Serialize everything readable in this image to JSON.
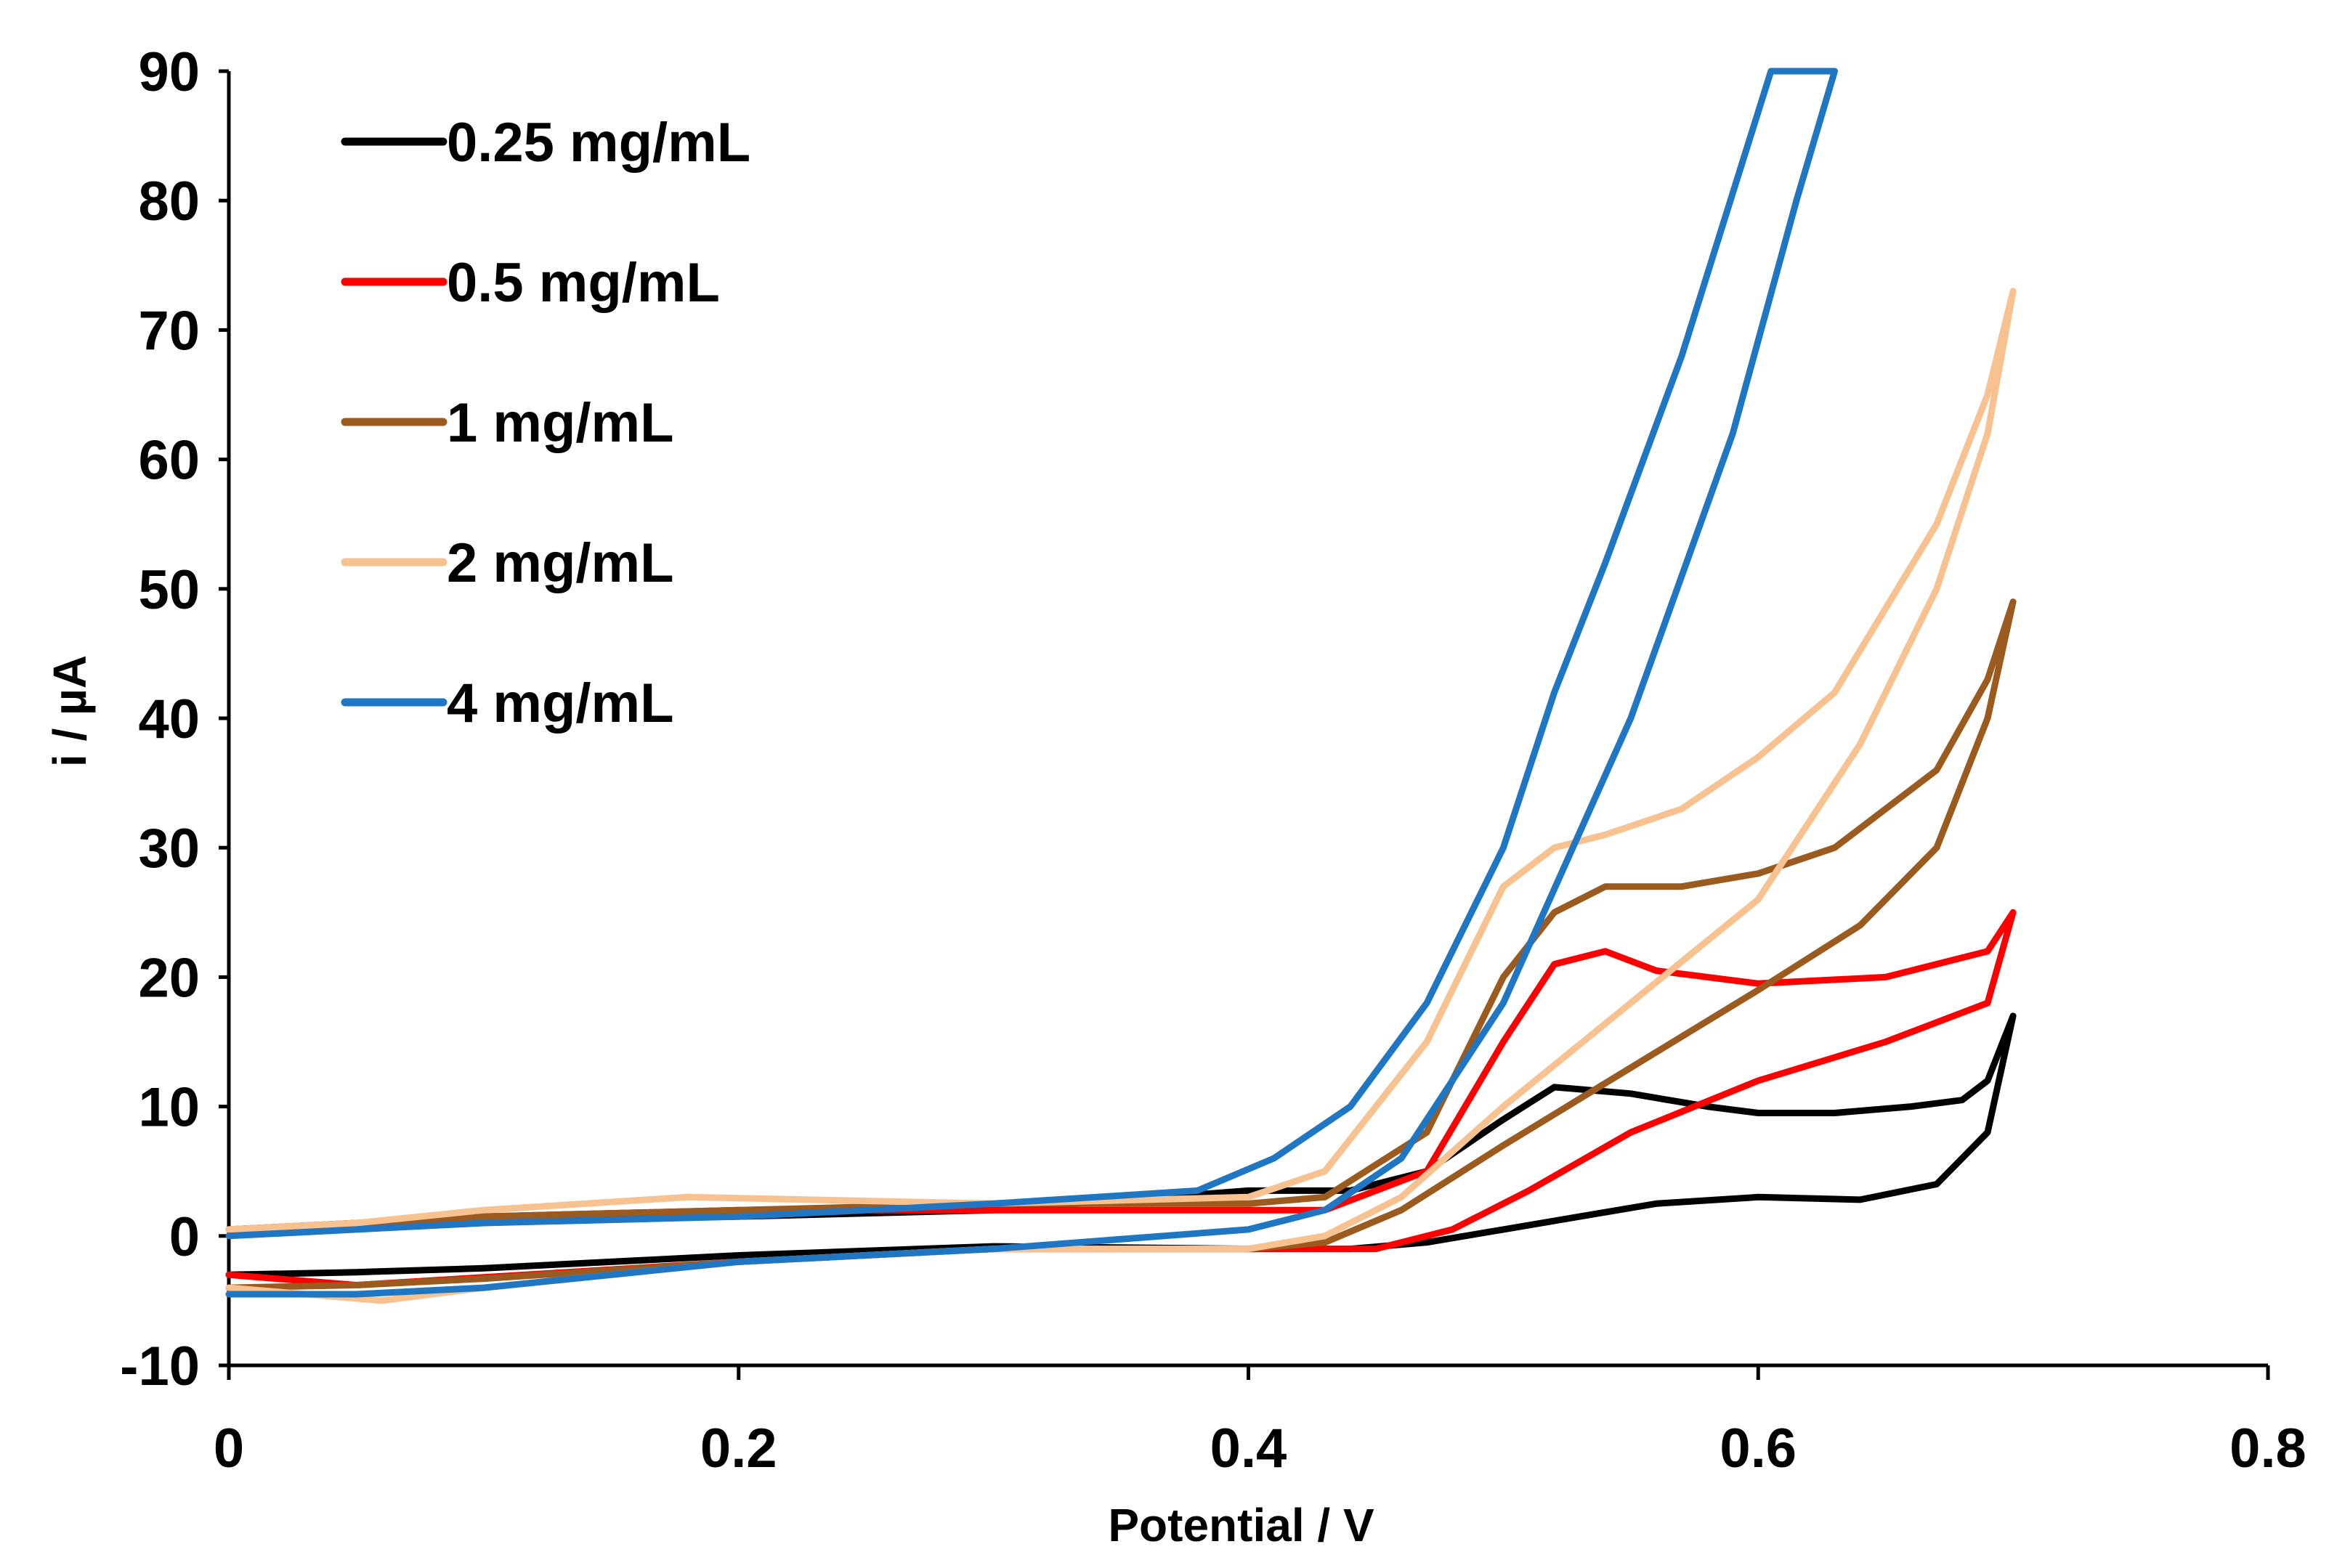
{
  "chart_data": {
    "type": "line",
    "title": "",
    "xlabel": "Potential / V",
    "ylabel": "i / µA",
    "xlim": [
      0,
      0.8
    ],
    "ylim": [
      -10,
      90
    ],
    "xticks": [
      0,
      0.2,
      0.4,
      0.6,
      0.8
    ],
    "xtick_labels": [
      "0",
      "0.2",
      "0.4",
      "0.6",
      "0.8"
    ],
    "yticks": [
      -10,
      0,
      10,
      20,
      30,
      40,
      50,
      60,
      70,
      80,
      90
    ],
    "ytick_labels": [
      "-10",
      "0",
      "10",
      "20",
      "30",
      "40",
      "50",
      "60",
      "70",
      "80",
      "90"
    ],
    "grid": false,
    "legend_position": "top-left",
    "series": [
      {
        "name": "0.25 mg/mL",
        "color": "#000000",
        "x": [
          0,
          0.05,
          0.1,
          0.2,
          0.3,
          0.4,
          0.44,
          0.47,
          0.5,
          0.53,
          0.56,
          0.6,
          0.64,
          0.67,
          0.69,
          0.7,
          0.7,
          0.69,
          0.68,
          0.66,
          0.63,
          0.6,
          0.58,
          0.55,
          0.52,
          0.5,
          0.47,
          0.44,
          0.4,
          0.3,
          0.2,
          0.1,
          0.05,
          0
        ],
        "y": [
          -3,
          -2.8,
          -2.5,
          -1.5,
          -0.8,
          -1,
          -1,
          -0.5,
          0.5,
          1.5,
          2.5,
          3,
          2.8,
          4,
          8,
          17,
          17,
          12,
          10.5,
          10,
          9.5,
          9.5,
          10,
          11,
          11.5,
          9,
          5,
          3.5,
          3.5,
          2,
          1.5,
          1.2,
          0.8,
          0.5
        ]
      },
      {
        "name": "0.5 mg/mL",
        "color": "#ff0000",
        "x": [
          0,
          0.05,
          0.1,
          0.2,
          0.3,
          0.4,
          0.45,
          0.48,
          0.51,
          0.55,
          0.6,
          0.65,
          0.69,
          0.7,
          0.7,
          0.69,
          0.65,
          0.6,
          0.56,
          0.54,
          0.52,
          0.5,
          0.47,
          0.43,
          0.4,
          0.3,
          0.2,
          0.1,
          0.05,
          0
        ],
        "y": [
          -3,
          -3.8,
          -3.2,
          -2,
          -1,
          -1,
          -1,
          0.5,
          3.5,
          8,
          12,
          15,
          18,
          25,
          25,
          22,
          20,
          19.5,
          20.5,
          22,
          21,
          15,
          5,
          2,
          2,
          2,
          2,
          1.5,
          1,
          0.5
        ]
      },
      {
        "name": "1 mg/mL",
        "color": "#9c5b1e",
        "x": [
          0,
          0.05,
          0.1,
          0.2,
          0.3,
          0.4,
          0.43,
          0.46,
          0.5,
          0.55,
          0.6,
          0.64,
          0.67,
          0.69,
          0.7,
          0.7,
          0.69,
          0.67,
          0.63,
          0.6,
          0.57,
          0.54,
          0.52,
          0.5,
          0.47,
          0.43,
          0.4,
          0.3,
          0.2,
          0.1,
          0.05,
          0
        ],
        "y": [
          -4,
          -3.8,
          -3.3,
          -2,
          -1,
          -1,
          -0.5,
          2,
          7,
          13,
          19,
          24,
          30,
          40,
          49,
          49,
          43,
          36,
          30,
          28,
          27,
          27,
          25,
          20,
          8,
          3,
          2.5,
          2.5,
          2,
          1.5,
          1,
          0.5
        ]
      },
      {
        "name": "2 mg/mL",
        "color": "#f7c190",
        "x": [
          0,
          0.06,
          0.1,
          0.2,
          0.3,
          0.4,
          0.43,
          0.46,
          0.5,
          0.55,
          0.6,
          0.64,
          0.67,
          0.69,
          0.7,
          0.7,
          0.69,
          0.67,
          0.63,
          0.6,
          0.57,
          0.54,
          0.52,
          0.5,
          0.47,
          0.43,
          0.4,
          0.3,
          0.18,
          0.1,
          0.05,
          0
        ],
        "y": [
          -4,
          -5,
          -4,
          -2,
          -1,
          -1,
          0,
          3,
          10,
          18,
          26,
          38,
          50,
          62,
          73,
          73,
          65,
          55,
          42,
          37,
          33,
          31,
          30,
          27,
          15,
          5,
          3,
          2.5,
          3,
          2,
          1,
          0.5
        ]
      },
      {
        "name": "4 mg/mL",
        "color": "#1f76c2",
        "x": [
          0,
          0.05,
          0.1,
          0.2,
          0.3,
          0.4,
          0.43,
          0.46,
          0.5,
          0.55,
          0.59,
          0.615,
          0.63,
          0.605,
          0.57,
          0.54,
          0.52,
          0.5,
          0.47,
          0.44,
          0.41,
          0.38,
          0.3,
          0.2,
          0.1,
          0.05,
          0
        ],
        "y": [
          -4.5,
          -4.5,
          -4,
          -2,
          -1,
          0.5,
          2,
          6,
          18,
          40,
          62,
          80,
          90,
          90,
          68,
          52,
          42,
          30,
          18,
          10,
          6,
          3.5,
          2.5,
          1.5,
          1,
          0.5,
          0
        ]
      }
    ]
  }
}
